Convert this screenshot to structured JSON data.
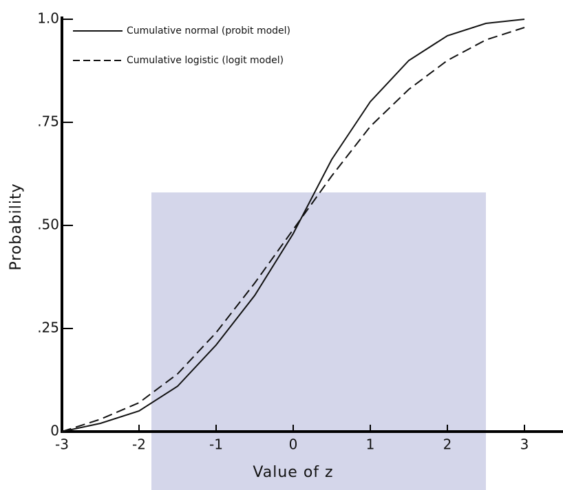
{
  "chart_data": {
    "type": "line",
    "x_label": "Value of z",
    "y_label": "Probability",
    "x": [
      -3,
      -2.5,
      -2,
      -1.5,
      -1,
      -0.5,
      0,
      0.5,
      1,
      1.5,
      2,
      2.5,
      3
    ],
    "series": [
      {
        "name": "Cumulative normal (probit model)",
        "color": "#111111",
        "style": "solid",
        "values": [
          0.0,
          0.02,
          0.05,
          0.11,
          0.21,
          0.33,
          0.48,
          0.66,
          0.8,
          0.9,
          0.96,
          0.99,
          1.0
        ]
      },
      {
        "name": "Cumulative logistic (logit model)",
        "color": "#111111",
        "style": "dashed",
        "values": [
          0.0,
          0.03,
          0.07,
          0.14,
          0.24,
          0.36,
          0.49,
          0.62,
          0.74,
          0.83,
          0.9,
          0.95,
          0.98
        ]
      }
    ],
    "xlim": [
      -3,
      3
    ],
    "xticks": [
      -3,
      -2,
      -1,
      0,
      1,
      2,
      3
    ],
    "ylim": [
      0,
      1.0
    ],
    "yticks": [
      0,
      {
        "value": 0.25,
        "label": ".25"
      },
      {
        "value": 0.5,
        "label": ".50"
      },
      {
        "value": 0.75,
        "label": ".75"
      },
      {
        "value": 1.0,
        "label": "1.0"
      }
    ]
  }
}
